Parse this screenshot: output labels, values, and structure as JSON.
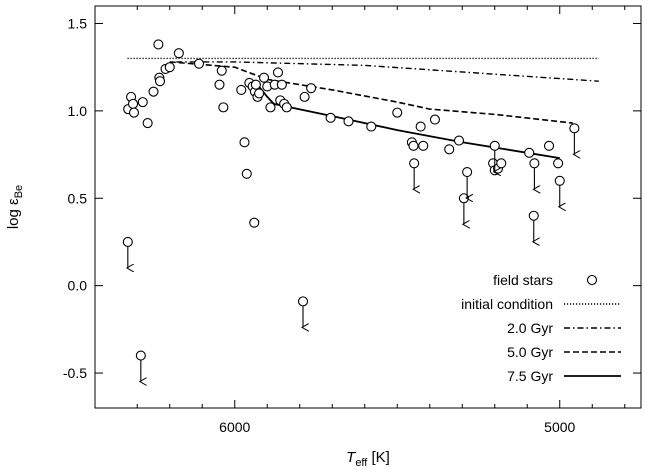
{
  "chart_data": {
    "type": "scatter",
    "title": "",
    "xlabel": {
      "main": "T",
      "sub": "eff",
      "unit": " [K]"
    },
    "ylabel": {
      "main": "log ε",
      "sub": "Be"
    },
    "x_reversed": true,
    "xlim": [
      6430,
      4750
    ],
    "ylim": [
      -0.7,
      1.6
    ],
    "x_ticks": [
      6000,
      5000
    ],
    "x_minor_ticks": [
      6300,
      6200,
      6100,
      5900,
      5800,
      5700,
      5600,
      5500,
      5400,
      5300,
      5200,
      5100,
      4900,
      4800
    ],
    "y_ticks": [
      {
        "value": 1.5,
        "label": "1.5"
      },
      {
        "value": 1.0,
        "label": "1.0"
      },
      {
        "value": 0.5,
        "label": "0.5"
      },
      {
        "value": 0.0,
        "label": "0.0"
      },
      {
        "value": -0.5,
        "label": "-0.5"
      }
    ],
    "legend_position": "bottom-right",
    "series": [
      {
        "name": "field stars",
        "style": "open-circle",
        "points": [
          [
            6328,
            1.01
          ],
          [
            6319,
            1.08
          ],
          [
            6313,
            1.04
          ],
          [
            6310,
            0.99
          ],
          [
            6283,
            1.05
          ],
          [
            6268,
            0.93
          ],
          [
            6250,
            1.11
          ],
          [
            6235,
            1.38
          ],
          [
            6232,
            1.19
          ],
          [
            6230,
            1.17
          ],
          [
            6213,
            1.24
          ],
          [
            6200,
            1.25
          ],
          [
            6172,
            1.33
          ],
          [
            6110,
            1.27
          ],
          [
            6047,
            1.15
          ],
          [
            6040,
            1.23
          ],
          [
            6035,
            1.02
          ],
          [
            5980,
            1.12
          ],
          [
            5970,
            0.82
          ],
          [
            5963,
            0.64
          ],
          [
            5955,
            1.16
          ],
          [
            5945,
            1.14
          ],
          [
            5938,
            1.11
          ],
          [
            5935,
            1.15
          ],
          [
            5930,
            1.08
          ],
          [
            5925,
            1.1
          ],
          [
            5910,
            1.19
          ],
          [
            5900,
            1.14
          ],
          [
            5890,
            1.02
          ],
          [
            5877,
            1.15
          ],
          [
            5867,
            1.22
          ],
          [
            5860,
            1.06
          ],
          [
            5855,
            1.15
          ],
          [
            5848,
            1.04
          ],
          [
            5840,
            1.02
          ],
          [
            5785,
            1.08
          ],
          [
            5765,
            1.13
          ],
          [
            5705,
            0.96
          ],
          [
            5650,
            0.94
          ],
          [
            5580,
            0.91
          ],
          [
            5500,
            0.99
          ],
          [
            5455,
            0.82
          ],
          [
            5450,
            0.8
          ],
          [
            5428,
            0.91
          ],
          [
            5420,
            0.8
          ],
          [
            5384,
            0.95
          ],
          [
            5340,
            0.78
          ],
          [
            5310,
            0.83
          ],
          [
            5205,
            0.7
          ],
          [
            5200,
            0.66
          ],
          [
            5190,
            0.67
          ],
          [
            5180,
            0.7
          ],
          [
            5094,
            0.76
          ],
          [
            5033,
            0.8
          ],
          [
            5005,
            0.7
          ],
          [
            5940,
            0.36
          ]
        ]
      },
      {
        "name": "initial condition",
        "style": "dotted",
        "points": [
          [
            6330,
            1.3
          ],
          [
            4880,
            1.3
          ]
        ]
      },
      {
        "name": "2.0 Gyr",
        "style": "dash-dot",
        "points": [
          [
            6180,
            1.28
          ],
          [
            6000,
            1.28
          ],
          [
            5600,
            1.26
          ],
          [
            5200,
            1.21
          ],
          [
            4880,
            1.17
          ]
        ]
      },
      {
        "name": "5.0 Gyr",
        "style": "dashed",
        "points": [
          [
            6200,
            1.28
          ],
          [
            6000,
            1.25
          ],
          [
            5900,
            1.18
          ],
          [
            5700,
            1.12
          ],
          [
            5500,
            1.05
          ],
          [
            5400,
            1.01
          ],
          [
            5200,
            0.98
          ],
          [
            4960,
            0.93
          ]
        ]
      },
      {
        "name": "7.5 Gyr",
        "style": "solid",
        "points": [
          [
            5930,
            1.15
          ],
          [
            5900,
            1.08
          ],
          [
            5880,
            1.04
          ],
          [
            5700,
            0.97
          ],
          [
            5500,
            0.89
          ],
          [
            5300,
            0.82
          ],
          [
            5100,
            0.76
          ],
          [
            5000,
            0.73
          ]
        ]
      }
    ],
    "upper_limits": [
      [
        6329,
        0.25
      ],
      [
        6289,
        -0.4
      ],
      [
        5790,
        -0.09
      ],
      [
        5448,
        0.7
      ],
      [
        5295,
        0.5
      ],
      [
        5285,
        0.65
      ],
      [
        5200,
        0.8
      ],
      [
        5080,
        0.4
      ],
      [
        5078,
        0.7
      ],
      [
        5000,
        0.6
      ],
      [
        4955,
        0.9
      ]
    ]
  }
}
